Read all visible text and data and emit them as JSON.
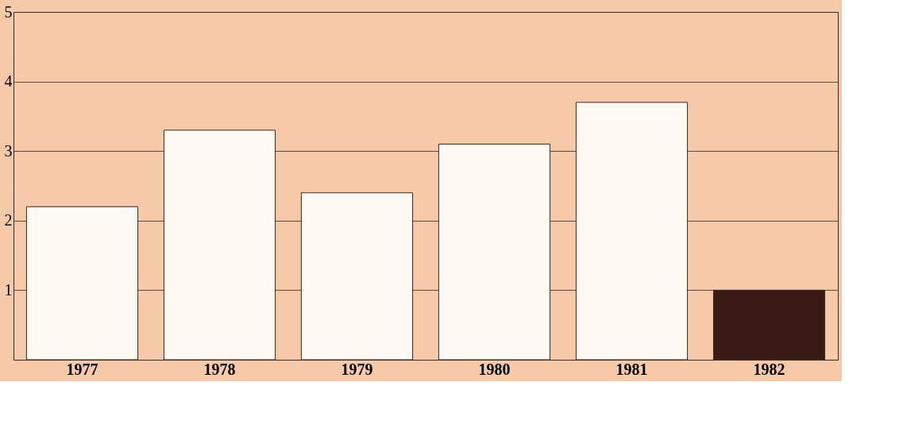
{
  "chart_data": {
    "type": "bar",
    "categories": [
      "1977",
      "1978",
      "1979",
      "1980",
      "1981",
      "1982"
    ],
    "values": [
      2.2,
      3.3,
      2.4,
      3.1,
      3.7,
      1.0
    ],
    "colors": [
      "#fdf8f2",
      "#fdf8f2",
      "#fdf8f2",
      "#fdf8f2",
      "#fdf8f2",
      "#3a1a14"
    ],
    "ylim": [
      0,
      5
    ],
    "yticks": [
      {
        "value": 0,
        "label": null
      },
      1,
      2,
      3,
      4,
      5
    ],
    "grid": "y"
  }
}
